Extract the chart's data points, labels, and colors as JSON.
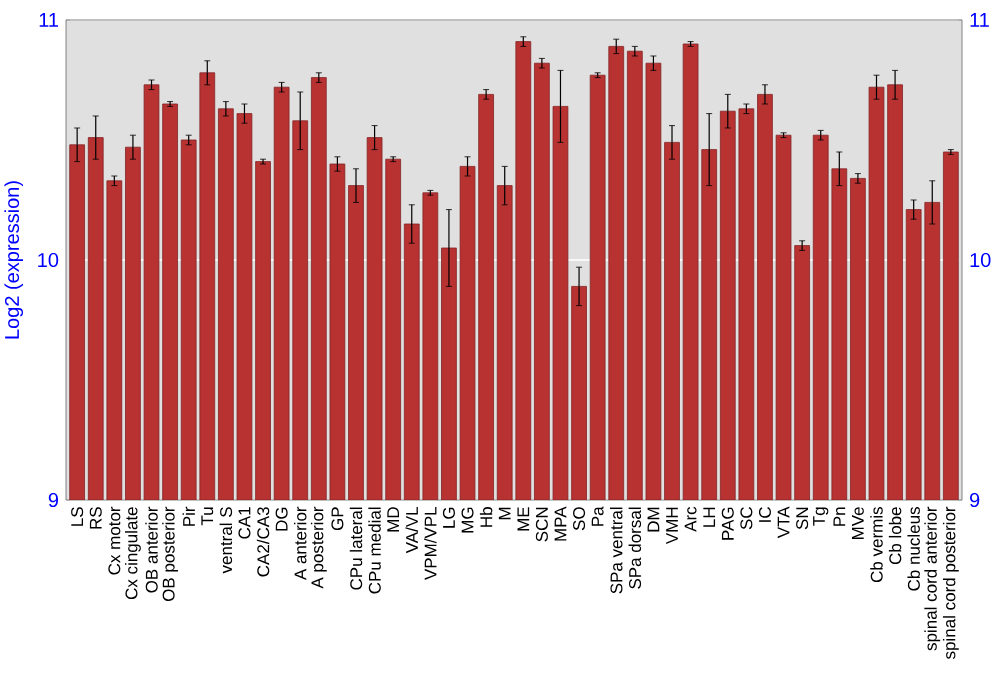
{
  "chart_data": {
    "type": "bar",
    "ylabel": "Log2 (expression)",
    "categories": [
      "LS",
      "RS",
      "Cx motor",
      "Cx cingulate",
      "OB anterior",
      "OB posterior",
      "Pir",
      "Tu",
      "ventral S",
      "CA1",
      "CA2/CA3",
      "DG",
      "A anterior",
      "A posterior",
      "GP",
      "CPu lateral",
      "CPu medial",
      "MD",
      "VA/VL",
      "VPM/VPL",
      "LG",
      "MG",
      "Hb",
      "M",
      "ME",
      "SCN",
      "MPA",
      "SO",
      "Pa",
      "SPa ventral",
      "SPa dorsal",
      "DM",
      "VMH",
      "Arc",
      "LH",
      "PAG",
      "SC",
      "IC",
      "VTA",
      "SN",
      "Tg",
      "Pn",
      "MVe",
      "Cb vermis",
      "Cb lobe",
      "Cb nucleus",
      "spinal cord anterior",
      "spinal cord posterior"
    ],
    "values": [
      10.48,
      10.51,
      10.33,
      10.47,
      10.73,
      10.65,
      10.5,
      10.78,
      10.63,
      10.61,
      10.41,
      10.72,
      10.58,
      10.76,
      10.4,
      10.31,
      10.51,
      10.42,
      10.15,
      10.28,
      10.05,
      10.39,
      10.69,
      10.31,
      10.91,
      10.82,
      10.64,
      9.89,
      10.77,
      10.89,
      10.87,
      10.82,
      10.49,
      10.9,
      10.46,
      10.62,
      10.63,
      10.69,
      10.52,
      10.06,
      10.52,
      10.38,
      10.34,
      10.72,
      10.73,
      10.21,
      10.24,
      10.45
    ],
    "errors": [
      0.07,
      0.09,
      0.02,
      0.05,
      0.02,
      0.01,
      0.02,
      0.05,
      0.03,
      0.04,
      0.01,
      0.02,
      0.12,
      0.02,
      0.03,
      0.07,
      0.05,
      0.01,
      0.08,
      0.01,
      0.16,
      0.04,
      0.02,
      0.08,
      0.02,
      0.02,
      0.15,
      0.08,
      0.01,
      0.03,
      0.02,
      0.03,
      0.07,
      0.01,
      0.15,
      0.07,
      0.02,
      0.04,
      0.01,
      0.02,
      0.02,
      0.07,
      0.02,
      0.05,
      0.06,
      0.04,
      0.09,
      0.01
    ],
    "color": "#b93232",
    "ylim": [
      9,
      11
    ],
    "yticks": [
      9,
      10,
      11
    ],
    "y2lim": [
      9,
      11
    ],
    "y2ticks": [
      9,
      10,
      11
    ],
    "grid": "y"
  }
}
